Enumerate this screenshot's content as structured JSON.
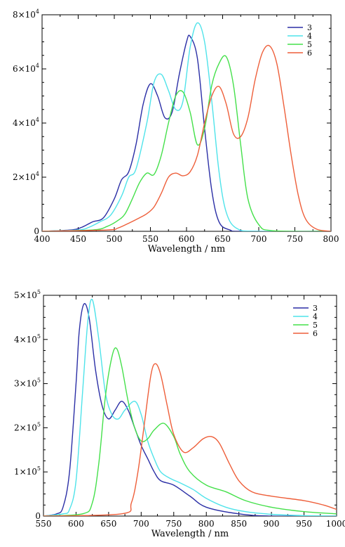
{
  "colors": {
    "3": "#2b2fa6",
    "4": "#4fe3ea",
    "5": "#44e04a",
    "6": "#ee5f3a"
  },
  "chart_data": [
    {
      "type": "line",
      "xlabel": "Wavelength / nm",
      "ylabel": "",
      "xlim": [
        400,
        800
      ],
      "ylim": [
        0,
        80000
      ],
      "xticks": [
        400,
        450,
        500,
        550,
        600,
        650,
        700,
        750,
        800
      ],
      "yticks": [
        0,
        20000,
        40000,
        60000,
        80000
      ],
      "ytick_labels": [
        {
          "mantissa": "0",
          "exp": ""
        },
        {
          "mantissa": "2×10",
          "exp": "4"
        },
        {
          "mantissa": "4×10",
          "exp": "4"
        },
        {
          "mantissa": "6×10",
          "exp": "4"
        },
        {
          "mantissa": "8×10",
          "exp": "4"
        }
      ],
      "legend_position": "top-right",
      "grid": false,
      "series": [
        {
          "name": "3",
          "color": "#2b2fa6",
          "x": [
            400,
            440,
            455,
            470,
            485,
            500,
            510,
            520,
            530,
            540,
            550,
            560,
            570,
            580,
            590,
            600,
            605,
            615,
            625,
            635,
            645,
            660,
            680,
            800
          ],
          "y": [
            0,
            500,
            1500,
            3500,
            5000,
            12000,
            19000,
            22000,
            32000,
            47000,
            54500,
            50000,
            42000,
            44000,
            58000,
            70000,
            72000,
            64000,
            38000,
            15000,
            3500,
            500,
            0,
            0
          ]
        },
        {
          "name": "4",
          "color": "#4fe3ea",
          "x": [
            400,
            450,
            465,
            480,
            495,
            510,
            520,
            530,
            545,
            555,
            565,
            575,
            585,
            595,
            605,
            615,
            625,
            635,
            645,
            655,
            670,
            700,
            800
          ],
          "y": [
            0,
            500,
            1500,
            3500,
            6000,
            13000,
            20000,
            23000,
            40000,
            55000,
            58000,
            52000,
            45000,
            48000,
            68000,
            77000,
            70000,
            48000,
            22000,
            7000,
            1000,
            0,
            0
          ]
        },
        {
          "name": "5",
          "color": "#44e04a",
          "x": [
            400,
            470,
            490,
            505,
            515,
            525,
            535,
            545,
            555,
            565,
            575,
            585,
            595,
            605,
            615,
            625,
            635,
            645,
            655,
            665,
            675,
            685,
            700,
            720,
            800
          ],
          "y": [
            0,
            500,
            1800,
            4000,
            6500,
            12000,
            18000,
            21500,
            21000,
            28000,
            40000,
            50000,
            51500,
            44000,
            32000,
            38000,
            54000,
            62000,
            64500,
            54000,
            32000,
            12000,
            2500,
            200,
            0
          ]
        },
        {
          "name": "6",
          "color": "#ee5f3a",
          "x": [
            400,
            490,
            505,
            520,
            535,
            545,
            555,
            565,
            575,
            585,
            595,
            605,
            615,
            625,
            635,
            645,
            655,
            665,
            675,
            685,
            695,
            705,
            715,
            725,
            735,
            745,
            755,
            765,
            780,
            800
          ],
          "y": [
            0,
            500,
            1200,
            3000,
            5000,
            6500,
            9000,
            14000,
            20000,
            21500,
            20500,
            22000,
            28000,
            40000,
            50000,
            53500,
            47000,
            36000,
            35000,
            42000,
            56000,
            66000,
            68500,
            62000,
            46000,
            28000,
            13000,
            4500,
            800,
            0
          ]
        }
      ]
    },
    {
      "type": "line",
      "xlabel": "Wavelength / nm",
      "ylabel": "",
      "xlim": [
        550,
        1000
      ],
      "ylim": [
        0,
        500000
      ],
      "xticks": [
        550,
        600,
        650,
        700,
        750,
        800,
        850,
        900,
        950,
        1000
      ],
      "yticks": [
        0,
        100000,
        200000,
        300000,
        400000,
        500000
      ],
      "ytick_labels": [
        {
          "mantissa": "0",
          "exp": ""
        },
        {
          "mantissa": "1×10",
          "exp": "5"
        },
        {
          "mantissa": "2×10",
          "exp": "5"
        },
        {
          "mantissa": "3×10",
          "exp": "5"
        },
        {
          "mantissa": "4×10",
          "exp": "5"
        },
        {
          "mantissa": "5×10",
          "exp": "5"
        }
      ],
      "legend_position": "top-right",
      "grid": false,
      "series": [
        {
          "name": "3",
          "color": "#2b2fa6",
          "x": [
            550,
            570,
            580,
            590,
            600,
            605,
            612,
            620,
            630,
            640,
            650,
            660,
            670,
            680,
            690,
            700,
            710,
            720,
            730,
            750,
            775,
            800,
            850,
            900,
            1000
          ],
          "y": [
            0,
            5000,
            20000,
            100000,
            300000,
            420000,
            480000,
            450000,
            330000,
            250000,
            220000,
            240000,
            260000,
            240000,
            200000,
            160000,
            130000,
            100000,
            80000,
            70000,
            45000,
            20000,
            5000,
            0,
            0
          ]
        },
        {
          "name": "4",
          "color": "#4fe3ea",
          "x": [
            550,
            580,
            590,
            600,
            610,
            618,
            625,
            635,
            645,
            655,
            665,
            675,
            690,
            700,
            710,
            720,
            730,
            745,
            760,
            780,
            800,
            830,
            860,
            900,
            950,
            1000
          ],
          "y": [
            0,
            5000,
            15000,
            80000,
            280000,
            440000,
            490000,
            400000,
            280000,
            230000,
            220000,
            240000,
            260000,
            230000,
            170000,
            130000,
            100000,
            85000,
            75000,
            60000,
            40000,
            20000,
            10000,
            4000,
            1000,
            0
          ]
        },
        {
          "name": "5",
          "color": "#44e04a",
          "x": [
            550,
            610,
            625,
            635,
            645,
            655,
            662,
            670,
            680,
            690,
            700,
            710,
            720,
            735,
            750,
            760,
            775,
            800,
            830,
            860,
            900,
            950,
            1000
          ],
          "y": [
            0,
            5000,
            30000,
            120000,
            270000,
            360000,
            380000,
            340000,
            260000,
            200000,
            170000,
            175000,
            195000,
            210000,
            180000,
            140000,
            100000,
            70000,
            55000,
            35000,
            20000,
            10000,
            5000
          ]
        },
        {
          "name": "6",
          "color": "#ee5f3a",
          "x": [
            550,
            670,
            685,
            695,
            705,
            715,
            722,
            730,
            740,
            750,
            765,
            780,
            795,
            808,
            820,
            835,
            850,
            870,
            900,
            950,
            980,
            1000
          ],
          "y": [
            0,
            5000,
            30000,
            100000,
            210000,
            320000,
            345000,
            320000,
            250000,
            185000,
            145000,
            155000,
            175000,
            180000,
            165000,
            120000,
            80000,
            55000,
            45000,
            35000,
            25000,
            15000
          ]
        }
      ]
    }
  ]
}
